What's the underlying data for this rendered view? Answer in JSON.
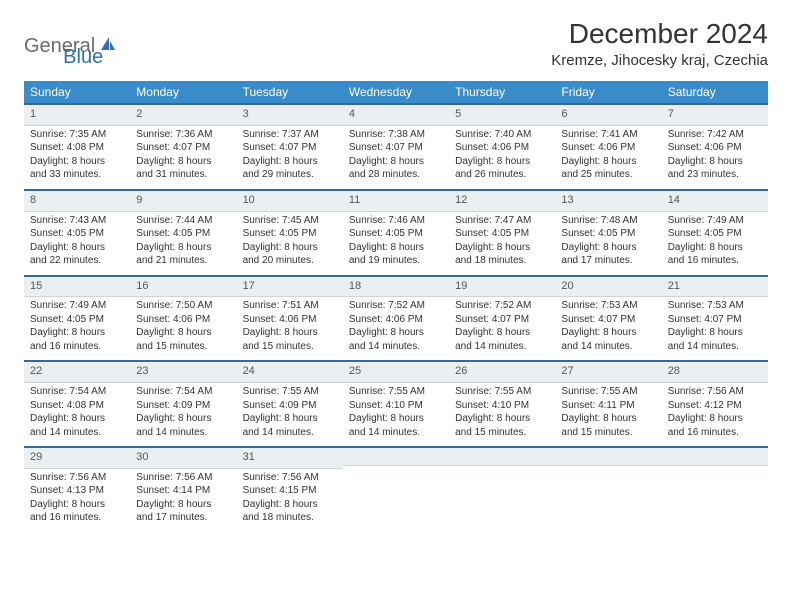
{
  "brand": {
    "part1": "General",
    "part2": "Blue"
  },
  "title": "December 2024",
  "location": "Kremze, Jihocesky kraj, Czechia",
  "colors": {
    "header_bg": "#3a8bca",
    "header_text": "#ffffff",
    "row_border": "#326a9a",
    "daynum_bg": "#eceff1",
    "body_bg": "#ffffff",
    "logo_grey": "#6a6a6a",
    "logo_blue": "#2f6fb3"
  },
  "weekdays": [
    "Sunday",
    "Monday",
    "Tuesday",
    "Wednesday",
    "Thursday",
    "Friday",
    "Saturday"
  ],
  "weeks": [
    [
      {
        "n": "1",
        "sr": "Sunrise: 7:35 AM",
        "ss": "Sunset: 4:08 PM",
        "d1": "Daylight: 8 hours",
        "d2": "and 33 minutes."
      },
      {
        "n": "2",
        "sr": "Sunrise: 7:36 AM",
        "ss": "Sunset: 4:07 PM",
        "d1": "Daylight: 8 hours",
        "d2": "and 31 minutes."
      },
      {
        "n": "3",
        "sr": "Sunrise: 7:37 AM",
        "ss": "Sunset: 4:07 PM",
        "d1": "Daylight: 8 hours",
        "d2": "and 29 minutes."
      },
      {
        "n": "4",
        "sr": "Sunrise: 7:38 AM",
        "ss": "Sunset: 4:07 PM",
        "d1": "Daylight: 8 hours",
        "d2": "and 28 minutes."
      },
      {
        "n": "5",
        "sr": "Sunrise: 7:40 AM",
        "ss": "Sunset: 4:06 PM",
        "d1": "Daylight: 8 hours",
        "d2": "and 26 minutes."
      },
      {
        "n": "6",
        "sr": "Sunrise: 7:41 AM",
        "ss": "Sunset: 4:06 PM",
        "d1": "Daylight: 8 hours",
        "d2": "and 25 minutes."
      },
      {
        "n": "7",
        "sr": "Sunrise: 7:42 AM",
        "ss": "Sunset: 4:06 PM",
        "d1": "Daylight: 8 hours",
        "d2": "and 23 minutes."
      }
    ],
    [
      {
        "n": "8",
        "sr": "Sunrise: 7:43 AM",
        "ss": "Sunset: 4:05 PM",
        "d1": "Daylight: 8 hours",
        "d2": "and 22 minutes."
      },
      {
        "n": "9",
        "sr": "Sunrise: 7:44 AM",
        "ss": "Sunset: 4:05 PM",
        "d1": "Daylight: 8 hours",
        "d2": "and 21 minutes."
      },
      {
        "n": "10",
        "sr": "Sunrise: 7:45 AM",
        "ss": "Sunset: 4:05 PM",
        "d1": "Daylight: 8 hours",
        "d2": "and 20 minutes."
      },
      {
        "n": "11",
        "sr": "Sunrise: 7:46 AM",
        "ss": "Sunset: 4:05 PM",
        "d1": "Daylight: 8 hours",
        "d2": "and 19 minutes."
      },
      {
        "n": "12",
        "sr": "Sunrise: 7:47 AM",
        "ss": "Sunset: 4:05 PM",
        "d1": "Daylight: 8 hours",
        "d2": "and 18 minutes."
      },
      {
        "n": "13",
        "sr": "Sunrise: 7:48 AM",
        "ss": "Sunset: 4:05 PM",
        "d1": "Daylight: 8 hours",
        "d2": "and 17 minutes."
      },
      {
        "n": "14",
        "sr": "Sunrise: 7:49 AM",
        "ss": "Sunset: 4:05 PM",
        "d1": "Daylight: 8 hours",
        "d2": "and 16 minutes."
      }
    ],
    [
      {
        "n": "15",
        "sr": "Sunrise: 7:49 AM",
        "ss": "Sunset: 4:05 PM",
        "d1": "Daylight: 8 hours",
        "d2": "and 16 minutes."
      },
      {
        "n": "16",
        "sr": "Sunrise: 7:50 AM",
        "ss": "Sunset: 4:06 PM",
        "d1": "Daylight: 8 hours",
        "d2": "and 15 minutes."
      },
      {
        "n": "17",
        "sr": "Sunrise: 7:51 AM",
        "ss": "Sunset: 4:06 PM",
        "d1": "Daylight: 8 hours",
        "d2": "and 15 minutes."
      },
      {
        "n": "18",
        "sr": "Sunrise: 7:52 AM",
        "ss": "Sunset: 4:06 PM",
        "d1": "Daylight: 8 hours",
        "d2": "and 14 minutes."
      },
      {
        "n": "19",
        "sr": "Sunrise: 7:52 AM",
        "ss": "Sunset: 4:07 PM",
        "d1": "Daylight: 8 hours",
        "d2": "and 14 minutes."
      },
      {
        "n": "20",
        "sr": "Sunrise: 7:53 AM",
        "ss": "Sunset: 4:07 PM",
        "d1": "Daylight: 8 hours",
        "d2": "and 14 minutes."
      },
      {
        "n": "21",
        "sr": "Sunrise: 7:53 AM",
        "ss": "Sunset: 4:07 PM",
        "d1": "Daylight: 8 hours",
        "d2": "and 14 minutes."
      }
    ],
    [
      {
        "n": "22",
        "sr": "Sunrise: 7:54 AM",
        "ss": "Sunset: 4:08 PM",
        "d1": "Daylight: 8 hours",
        "d2": "and 14 minutes."
      },
      {
        "n": "23",
        "sr": "Sunrise: 7:54 AM",
        "ss": "Sunset: 4:09 PM",
        "d1": "Daylight: 8 hours",
        "d2": "and 14 minutes."
      },
      {
        "n": "24",
        "sr": "Sunrise: 7:55 AM",
        "ss": "Sunset: 4:09 PM",
        "d1": "Daylight: 8 hours",
        "d2": "and 14 minutes."
      },
      {
        "n": "25",
        "sr": "Sunrise: 7:55 AM",
        "ss": "Sunset: 4:10 PM",
        "d1": "Daylight: 8 hours",
        "d2": "and 14 minutes."
      },
      {
        "n": "26",
        "sr": "Sunrise: 7:55 AM",
        "ss": "Sunset: 4:10 PM",
        "d1": "Daylight: 8 hours",
        "d2": "and 15 minutes."
      },
      {
        "n": "27",
        "sr": "Sunrise: 7:55 AM",
        "ss": "Sunset: 4:11 PM",
        "d1": "Daylight: 8 hours",
        "d2": "and 15 minutes."
      },
      {
        "n": "28",
        "sr": "Sunrise: 7:56 AM",
        "ss": "Sunset: 4:12 PM",
        "d1": "Daylight: 8 hours",
        "d2": "and 16 minutes."
      }
    ],
    [
      {
        "n": "29",
        "sr": "Sunrise: 7:56 AM",
        "ss": "Sunset: 4:13 PM",
        "d1": "Daylight: 8 hours",
        "d2": "and 16 minutes."
      },
      {
        "n": "30",
        "sr": "Sunrise: 7:56 AM",
        "ss": "Sunset: 4:14 PM",
        "d1": "Daylight: 8 hours",
        "d2": "and 17 minutes."
      },
      {
        "n": "31",
        "sr": "Sunrise: 7:56 AM",
        "ss": "Sunset: 4:15 PM",
        "d1": "Daylight: 8 hours",
        "d2": "and 18 minutes."
      },
      null,
      null,
      null,
      null
    ]
  ]
}
